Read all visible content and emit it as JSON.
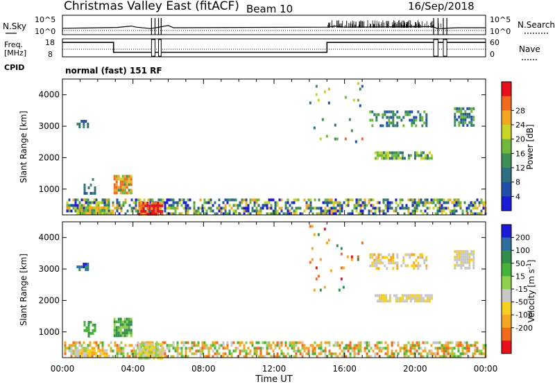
{
  "header": {
    "title": "Christmas Valley East (fitACF)",
    "beam": "Beam 10",
    "date": "16/Sep/2018"
  },
  "chart_data": [
    {
      "type": "line",
      "name": "N.Sky / N.Search",
      "ylabel_left": "N.Sky",
      "ylabel_right": "N.Search",
      "ticks_left": [
        "10^5",
        "10^0"
      ],
      "ticks_right": [
        "10^5",
        "10^0"
      ],
      "x_range_hours": [
        0,
        24
      ],
      "series": [
        {
          "label": "N.Sky",
          "style": "solid",
          "x": [
            0,
            3.1,
            3.9,
            4.2,
            5.0,
            5.3,
            6.0,
            6.3,
            15.0,
            15.5,
            16.0,
            21.0,
            21.3,
            22.0,
            22.4,
            24.0
          ],
          "y": [
            0.8,
            1.1,
            1.6,
            1.2,
            0.7,
            1.0,
            1.8,
            1.0,
            1.2,
            1.6,
            1.2,
            1.4,
            0.6,
            0.9,
            1.0,
            1.0
          ]
        },
        {
          "label": "N.Search",
          "style": "dotted",
          "x": [
            0,
            24
          ],
          "y": [
            0.0,
            0.0
          ]
        }
      ]
    },
    {
      "type": "line",
      "name": "Freq / Nave",
      "ylabel_left": "Freq. [MHz]",
      "ylabel_right": "Nave",
      "ticks_left": [
        "18",
        "8"
      ],
      "ticks_right": [
        "60",
        "0"
      ],
      "x_range_hours": [
        0,
        24
      ],
      "series": [
        {
          "label": "Freq",
          "style": "solid",
          "x": [
            0,
            2.9,
            2.9,
            15.0,
            15.0,
            24.0
          ],
          "y": [
            16,
            16,
            10.5,
            10.5,
            16,
            16
          ]
        },
        {
          "label": "Nave",
          "style": "dotted",
          "x": [
            0,
            24
          ],
          "y": [
            24,
            24
          ]
        }
      ]
    },
    {
      "type": "table",
      "name": "CPID",
      "label": "CPID",
      "value": "normal (fast) 151 RF"
    },
    {
      "type": "heatmap",
      "name": "Power",
      "ylabel": "Slant Range [km]",
      "ylim": [
        180,
        4500
      ],
      "yticks": [
        1000,
        2000,
        3000,
        4000
      ],
      "xlim_hours": [
        0,
        24
      ],
      "colorbar_label": "Power [dB]",
      "colorbar_ticks": [
        "4",
        "8",
        "12",
        "16",
        "20",
        "24",
        "28"
      ],
      "colorbar_colors": [
        "#1a1ad8",
        "#1f4fa8",
        "#2e6f80",
        "#3f8f5a",
        "#6fb83c",
        "#c8d426",
        "#f5a623",
        "#f26a1c",
        "#e8101a"
      ],
      "regions": [
        {
          "x0": 0.1,
          "x1": 24.0,
          "y0": 180,
          "y1": 700,
          "density": 0.55,
          "palette": [
            0,
            1,
            2,
            3,
            4,
            5,
            6
          ]
        },
        {
          "x0": 0.8,
          "x1": 2.6,
          "y0": 200,
          "y1": 450,
          "density": 0.9,
          "palette": [
            3,
            4,
            5,
            6
          ]
        },
        {
          "x0": 4.3,
          "x1": 5.6,
          "y0": 200,
          "y1": 600,
          "density": 0.9,
          "palette": [
            6,
            7,
            8,
            8
          ]
        },
        {
          "x0": 2.9,
          "x1": 3.9,
          "y0": 900,
          "y1": 1450,
          "density": 0.85,
          "palette": [
            3,
            4,
            5,
            6,
            7
          ]
        },
        {
          "x0": 1.2,
          "x1": 1.9,
          "y0": 900,
          "y1": 1350,
          "density": 0.4,
          "palette": [
            1,
            2,
            3
          ]
        },
        {
          "x0": 0.8,
          "x1": 1.4,
          "y0": 2950,
          "y1": 3200,
          "density": 0.6,
          "palette": [
            1,
            2,
            3
          ]
        },
        {
          "x0": 17.7,
          "x1": 21.0,
          "y0": 1950,
          "y1": 2200,
          "density": 0.8,
          "palette": [
            2,
            3,
            4,
            5
          ]
        },
        {
          "x0": 17.4,
          "x1": 20.6,
          "y0": 3050,
          "y1": 3500,
          "density": 0.45,
          "palette": [
            1,
            2,
            3,
            4
          ]
        },
        {
          "x0": 22.2,
          "x1": 23.3,
          "y0": 3050,
          "y1": 3600,
          "density": 0.7,
          "palette": [
            1,
            2,
            3,
            4
          ]
        },
        {
          "x0": 14.0,
          "x1": 17.0,
          "y0": 2300,
          "y1": 4400,
          "density": 0.05,
          "palette": [
            1,
            2,
            3,
            4,
            5,
            6,
            7
          ]
        }
      ]
    },
    {
      "type": "heatmap",
      "name": "Velocity",
      "ylabel": "Slant Range [km]",
      "ylim": [
        180,
        4500
      ],
      "yticks": [
        1000,
        2000,
        3000,
        4000
      ],
      "xlim_hours": [
        0,
        24
      ],
      "xticks": [
        "00:00",
        "04:00",
        "08:00",
        "12:00",
        "16:00",
        "20:00",
        "00:00"
      ],
      "xlabel": "Time UT",
      "colorbar_label": "Velocity [m s^-1]",
      "colorbar_ticks": [
        "200",
        "100",
        "50",
        "15",
        "-15",
        "-50",
        "-100",
        "-200"
      ],
      "colorbar_colors": [
        "#1a1ad8",
        "#2e6fa0",
        "#2f8f4a",
        "#45b23a",
        "#8ed04a",
        "#c8c8c8",
        "#f5d020",
        "#f5a623",
        "#f26a1c",
        "#e8101a"
      ],
      "regions": [
        {
          "x0": 0.1,
          "x1": 24.0,
          "y0": 180,
          "y1": 700,
          "density": 0.55,
          "palette": [
            3,
            4,
            5,
            7,
            7,
            8
          ]
        },
        {
          "x0": 0.8,
          "x1": 2.6,
          "y0": 200,
          "y1": 450,
          "density": 0.9,
          "palette": [
            5,
            6,
            7
          ]
        },
        {
          "x0": 4.3,
          "x1": 5.6,
          "y0": 200,
          "y1": 650,
          "density": 0.9,
          "palette": [
            5,
            4,
            6
          ]
        },
        {
          "x0": 2.9,
          "x1": 3.9,
          "y0": 900,
          "y1": 1450,
          "density": 0.85,
          "palette": [
            2,
            3,
            4
          ]
        },
        {
          "x0": 1.2,
          "x1": 1.9,
          "y0": 900,
          "y1": 1350,
          "density": 0.4,
          "palette": [
            2,
            3
          ]
        },
        {
          "x0": 0.8,
          "x1": 1.4,
          "y0": 2950,
          "y1": 3200,
          "density": 0.6,
          "palette": [
            1,
            0,
            2
          ]
        },
        {
          "x0": 17.7,
          "x1": 21.0,
          "y0": 1950,
          "y1": 2200,
          "density": 0.8,
          "palette": [
            5,
            5,
            6
          ]
        },
        {
          "x0": 17.4,
          "x1": 20.6,
          "y0": 3050,
          "y1": 3500,
          "density": 0.45,
          "palette": [
            5,
            5,
            6,
            7
          ]
        },
        {
          "x0": 22.2,
          "x1": 23.3,
          "y0": 3050,
          "y1": 3600,
          "density": 0.7,
          "palette": [
            5,
            5,
            6
          ]
        },
        {
          "x0": 14.0,
          "x1": 17.0,
          "y0": 2300,
          "y1": 4400,
          "density": 0.05,
          "palette": [
            7,
            8,
            9,
            2
          ]
        }
      ]
    }
  ]
}
